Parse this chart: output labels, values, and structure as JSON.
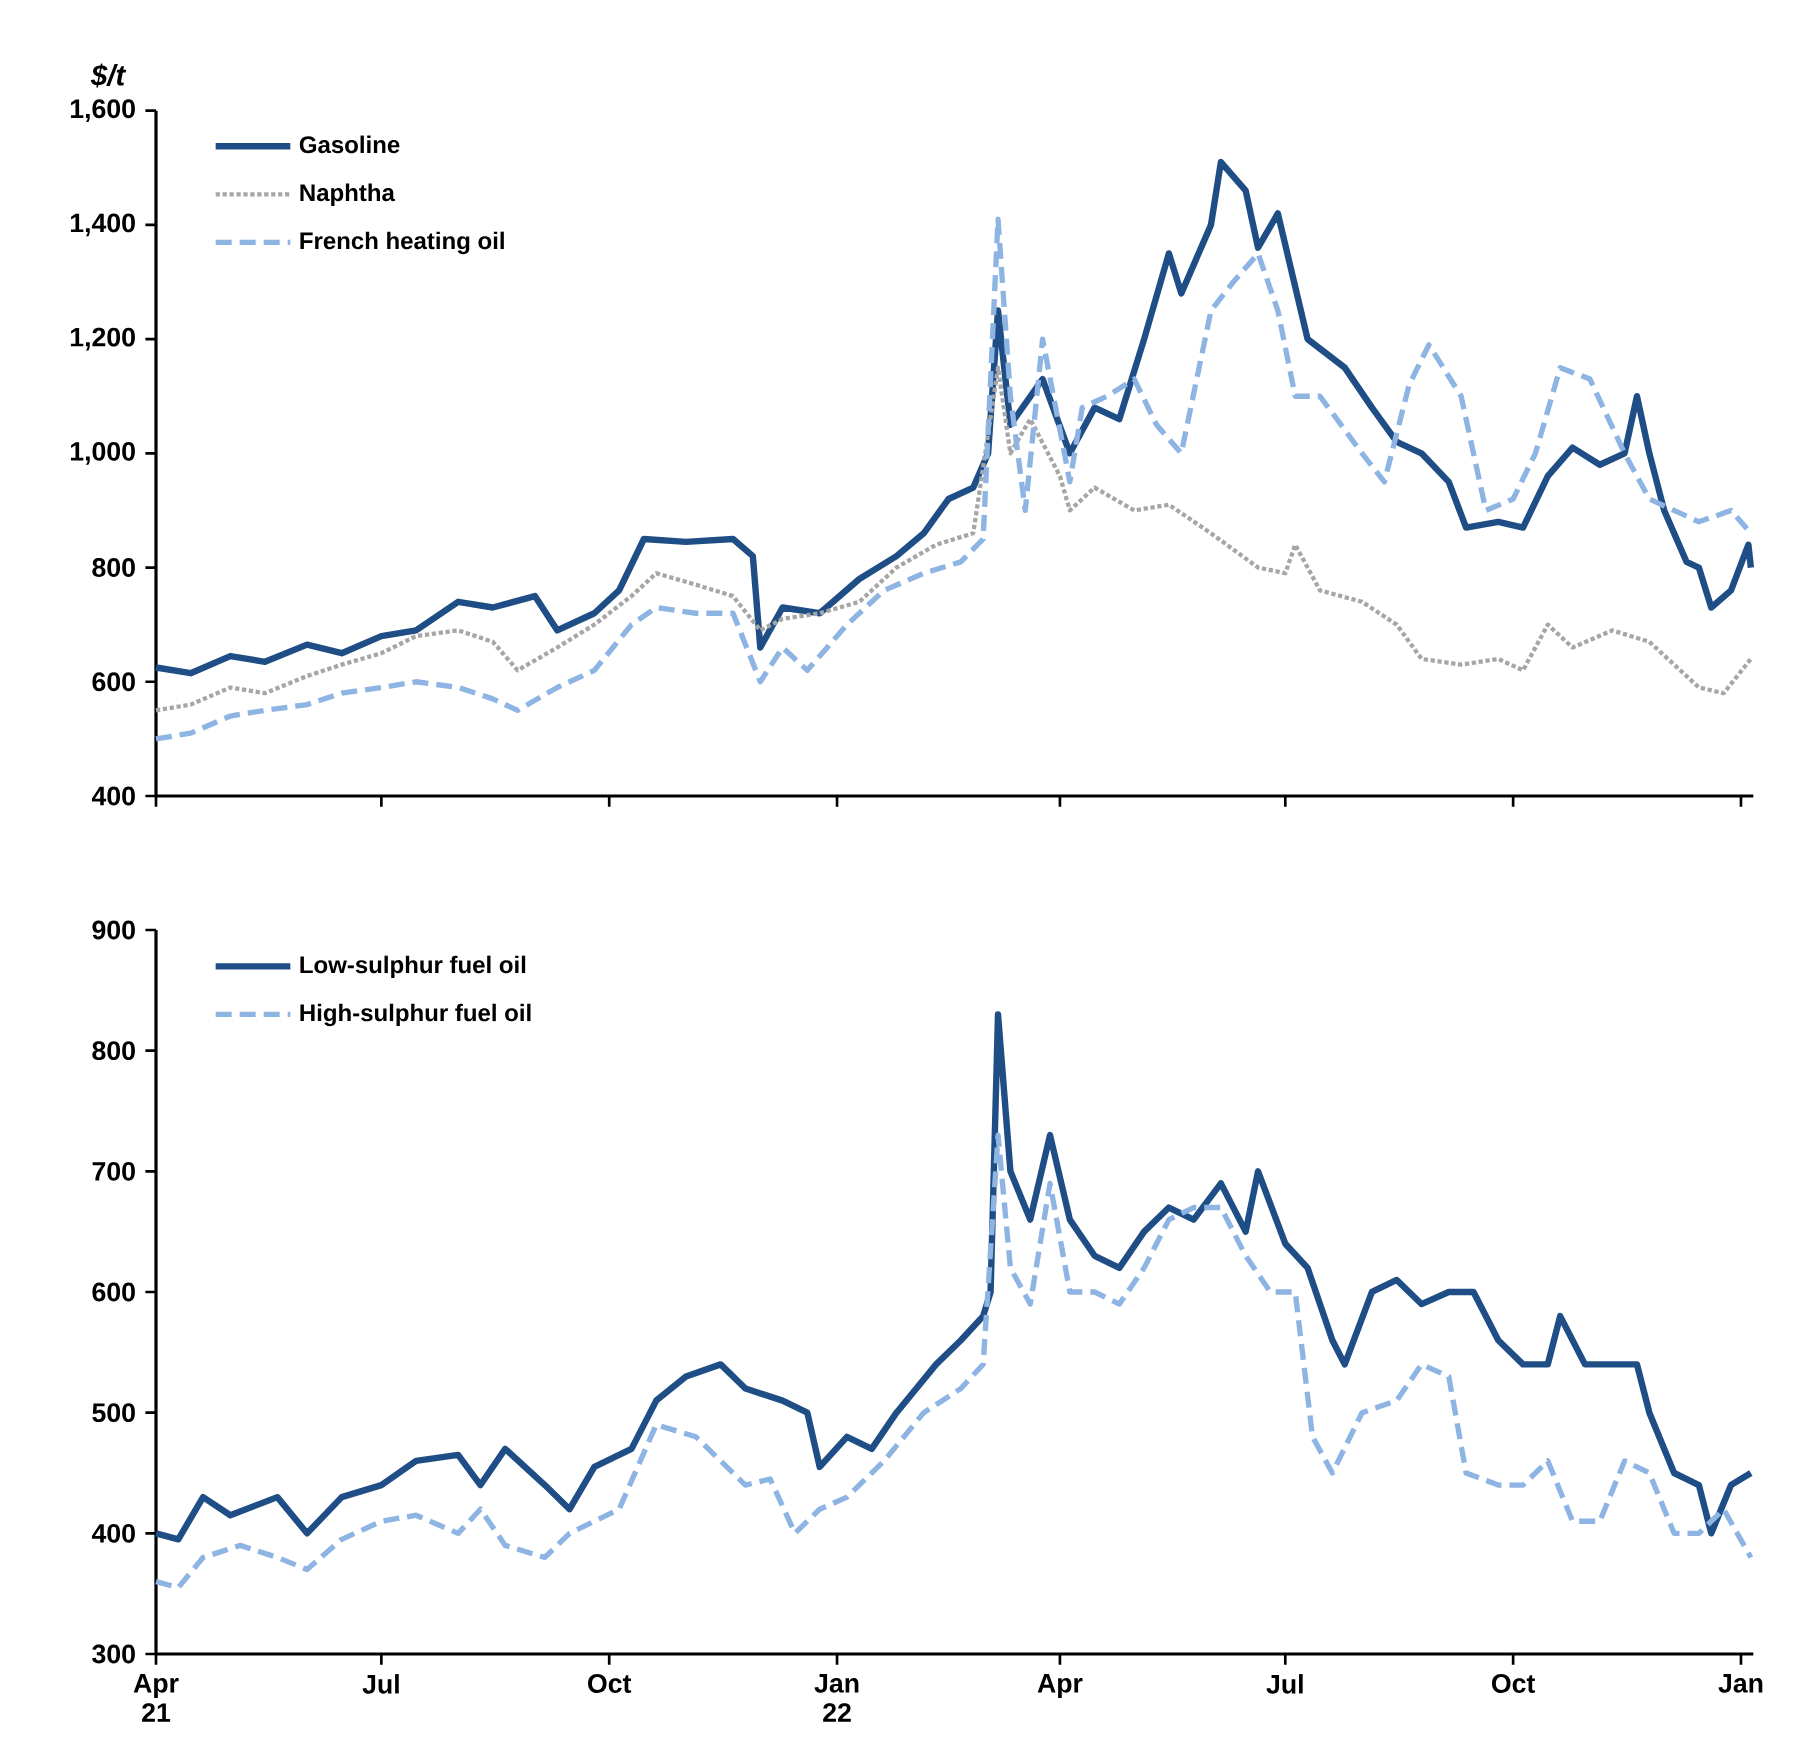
{
  "chart_data": [
    {
      "type": "line",
      "ylabel": "$/t",
      "xlim": [
        "2021-04-01",
        "2023-01-06"
      ],
      "ylim": [
        400,
        1600
      ],
      "yticks": [
        {
          "value": 400,
          "label": "400"
        },
        {
          "value": 600,
          "label": "600"
        },
        {
          "value": 800,
          "label": "800"
        },
        {
          "value": 1000,
          "label": "1,000"
        },
        {
          "value": 1200,
          "label": "1,200"
        },
        {
          "value": 1400,
          "label": "1,400"
        },
        {
          "value": 1600,
          "label": "1,600"
        }
      ],
      "xticks": [
        {
          "value": "2021-04-01",
          "label": null
        },
        {
          "value": "2021-07-01",
          "label": null
        },
        {
          "value": "2021-10-01",
          "label": null
        },
        {
          "value": "2022-01-01",
          "label": null
        },
        {
          "value": "2022-04-01",
          "label": null
        },
        {
          "value": "2022-07-01",
          "label": null
        },
        {
          "value": "2022-10-01",
          "label": null
        },
        {
          "value": "2023-01-01",
          "label": null
        }
      ],
      "tick_labels": "y",
      "legend": "top left",
      "grid": false,
      "series": [
        {
          "name": "Gasoline",
          "color": "#1f4e86",
          "line_style": "solid",
          "x": [
            "2021-04-01",
            "2021-04-15",
            "2021-05-01",
            "2021-05-15",
            "2021-06-01",
            "2021-06-15",
            "2021-07-01",
            "2021-07-15",
            "2021-08-01",
            "2021-08-15",
            "2021-09-01",
            "2021-09-10",
            "2021-09-25",
            "2021-10-05",
            "2021-10-15",
            "2021-11-01",
            "2021-11-20",
            "2021-11-28",
            "2021-12-01",
            "2021-12-10",
            "2021-12-25",
            "2022-01-10",
            "2022-01-25",
            "2022-02-05",
            "2022-02-15",
            "2022-02-25",
            "2022-03-03",
            "2022-03-07",
            "2022-03-12",
            "2022-03-25",
            "2022-04-05",
            "2022-04-15",
            "2022-04-25",
            "2022-05-05",
            "2022-05-15",
            "2022-05-20",
            "2022-06-01",
            "2022-06-05",
            "2022-06-15",
            "2022-06-20",
            "2022-06-28",
            "2022-07-10",
            "2022-07-25",
            "2022-08-05",
            "2022-08-15",
            "2022-08-25",
            "2022-09-05",
            "2022-09-12",
            "2022-09-25",
            "2022-10-05",
            "2022-10-15",
            "2022-10-25",
            "2022-11-05",
            "2022-11-15",
            "2022-11-20",
            "2022-11-25",
            "2022-12-01",
            "2022-12-10",
            "2022-12-15",
            "2022-12-20",
            "2022-12-28",
            "2023-01-04",
            "2023-01-05"
          ],
          "values": [
            625,
            615,
            645,
            635,
            665,
            650,
            680,
            690,
            740,
            730,
            750,
            690,
            720,
            760,
            850,
            845,
            850,
            820,
            660,
            730,
            720,
            780,
            820,
            860,
            920,
            940,
            1000,
            1250,
            1050,
            1130,
            1000,
            1080,
            1060,
            1200,
            1350,
            1280,
            1400,
            1510,
            1460,
            1360,
            1420,
            1200,
            1150,
            1080,
            1020,
            1000,
            950,
            870,
            880,
            870,
            960,
            1010,
            980,
            1000,
            1100,
            1000,
            900,
            810,
            800,
            730,
            760,
            840,
            800
          ]
        },
        {
          "name": "Naphtha",
          "color": "#a6a6a6",
          "line_style": "dotted",
          "x": [
            "2021-04-01",
            "2021-04-15",
            "2021-05-01",
            "2021-05-15",
            "2021-06-01",
            "2021-06-15",
            "2021-07-01",
            "2021-07-15",
            "2021-08-01",
            "2021-08-15",
            "2021-08-25",
            "2021-09-10",
            "2021-09-25",
            "2021-10-10",
            "2021-10-20",
            "2021-11-05",
            "2021-11-20",
            "2021-12-01",
            "2021-12-10",
            "2021-12-25",
            "2022-01-10",
            "2022-01-25",
            "2022-02-10",
            "2022-02-25",
            "2022-03-07",
            "2022-03-12",
            "2022-03-20",
            "2022-04-01",
            "2022-04-05",
            "2022-04-15",
            "2022-05-01",
            "2022-05-15",
            "2022-06-01",
            "2022-06-20",
            "2022-07-01",
            "2022-07-05",
            "2022-07-15",
            "2022-08-01",
            "2022-08-15",
            "2022-08-25",
            "2022-09-10",
            "2022-09-25",
            "2022-10-05",
            "2022-10-15",
            "2022-10-25",
            "2022-11-10",
            "2022-11-25",
            "2022-12-05",
            "2022-12-15",
            "2022-12-25",
            "2023-01-05"
          ],
          "values": [
            550,
            560,
            590,
            580,
            610,
            630,
            650,
            680,
            690,
            670,
            620,
            660,
            700,
            750,
            790,
            770,
            750,
            690,
            710,
            720,
            740,
            800,
            840,
            860,
            1150,
            1000,
            1060,
            960,
            900,
            940,
            900,
            910,
            860,
            800,
            790,
            840,
            760,
            740,
            700,
            640,
            630,
            640,
            620,
            700,
            660,
            690,
            670,
            630,
            590,
            580,
            640
          ]
        },
        {
          "name": "French heating oil",
          "color": "#8db4e2",
          "line_style": "dashed",
          "x": [
            "2021-04-01",
            "2021-04-15",
            "2021-05-01",
            "2021-05-15",
            "2021-06-01",
            "2021-06-15",
            "2021-07-01",
            "2021-07-15",
            "2021-08-01",
            "2021-08-15",
            "2021-08-25",
            "2021-09-10",
            "2021-09-25",
            "2021-10-10",
            "2021-10-20",
            "2021-11-05",
            "2021-11-20",
            "2021-12-01",
            "2021-12-10",
            "2021-12-20",
            "2022-01-05",
            "2022-01-20",
            "2022-02-05",
            "2022-02-20",
            "2022-03-01",
            "2022-03-07",
            "2022-03-12",
            "2022-03-18",
            "2022-03-25",
            "2022-04-05",
            "2022-04-10",
            "2022-04-20",
            "2022-05-01",
            "2022-05-10",
            "2022-05-20",
            "2022-06-01",
            "2022-06-10",
            "2022-06-20",
            "2022-06-28",
            "2022-07-05",
            "2022-07-15",
            "2022-08-01",
            "2022-08-10",
            "2022-08-20",
            "2022-08-28",
            "2022-09-10",
            "2022-09-20",
            "2022-10-01",
            "2022-10-10",
            "2022-10-20",
            "2022-11-01",
            "2022-11-15",
            "2022-11-25",
            "2022-12-05",
            "2022-12-15",
            "2022-12-28",
            "2023-01-05"
          ],
          "values": [
            500,
            510,
            540,
            550,
            560,
            580,
            590,
            600,
            590,
            570,
            550,
            590,
            620,
            700,
            730,
            720,
            720,
            600,
            660,
            620,
            700,
            760,
            790,
            810,
            850,
            1410,
            1100,
            900,
            1200,
            950,
            1080,
            1100,
            1130,
            1050,
            1000,
            1250,
            1300,
            1350,
            1250,
            1100,
            1100,
            1000,
            950,
            1120,
            1190,
            1100,
            900,
            920,
            1000,
            1150,
            1130,
            1000,
            920,
            900,
            880,
            900,
            860
          ]
        }
      ]
    },
    {
      "type": "line",
      "xlim": [
        "2021-04-01",
        "2023-01-06"
      ],
      "ylim": [
        300,
        900
      ],
      "yticks": [
        300,
        400,
        500,
        600,
        700,
        800,
        900
      ],
      "xticks": [
        {
          "value": "2021-04-01",
          "label": "Apr 21"
        },
        {
          "value": "2021-07-01",
          "label": "Jul"
        },
        {
          "value": "2021-10-01",
          "label": "Oct"
        },
        {
          "value": "2022-01-01",
          "label": "Jan 22"
        },
        {
          "value": "2022-04-01",
          "label": "Apr"
        },
        {
          "value": "2022-07-01",
          "label": "Jul"
        },
        {
          "value": "2022-10-01",
          "label": "Oct"
        },
        {
          "value": "2023-01-01",
          "label": "Jan"
        }
      ],
      "legend": "top left",
      "grid": false,
      "series": [
        {
          "name": "Low-sulphur fuel oil",
          "color": "#1f4e86",
          "line_style": "solid",
          "x": [
            "2021-04-01",
            "2021-04-10",
            "2021-04-20",
            "2021-05-01",
            "2021-05-20",
            "2021-06-01",
            "2021-06-15",
            "2021-07-01",
            "2021-07-15",
            "2021-08-01",
            "2021-08-10",
            "2021-08-20",
            "2021-09-05",
            "2021-09-15",
            "2021-09-25",
            "2021-10-10",
            "2021-10-20",
            "2021-11-01",
            "2021-11-15",
            "2021-11-25",
            "2021-12-10",
            "2021-12-20",
            "2021-12-25",
            "2022-01-05",
            "2022-01-15",
            "2022-01-25",
            "2022-02-10",
            "2022-02-20",
            "2022-03-01",
            "2022-03-04",
            "2022-03-07",
            "2022-03-12",
            "2022-03-20",
            "2022-03-28",
            "2022-04-05",
            "2022-04-15",
            "2022-04-25",
            "2022-05-05",
            "2022-05-15",
            "2022-05-25",
            "2022-06-05",
            "2022-06-15",
            "2022-06-20",
            "2022-07-01",
            "2022-07-10",
            "2022-07-20",
            "2022-07-25",
            "2022-08-05",
            "2022-08-15",
            "2022-08-25",
            "2022-09-05",
            "2022-09-15",
            "2022-09-25",
            "2022-10-05",
            "2022-10-15",
            "2022-10-20",
            "2022-10-30",
            "2022-11-10",
            "2022-11-20",
            "2022-11-25",
            "2022-12-05",
            "2022-12-15",
            "2022-12-20",
            "2022-12-28",
            "2023-01-05"
          ],
          "values": [
            400,
            395,
            430,
            415,
            430,
            400,
            430,
            440,
            460,
            465,
            440,
            470,
            440,
            420,
            455,
            470,
            510,
            530,
            540,
            520,
            510,
            500,
            455,
            480,
            470,
            500,
            540,
            560,
            580,
            600,
            830,
            700,
            660,
            730,
            660,
            630,
            620,
            650,
            670,
            660,
            690,
            650,
            700,
            640,
            620,
            560,
            540,
            600,
            610,
            590,
            600,
            600,
            560,
            540,
            540,
            580,
            540,
            540,
            540,
            500,
            450,
            440,
            400,
            440,
            450
          ]
        },
        {
          "name": "High-sulphur fuel oil",
          "color": "#8db4e2",
          "line_style": "dashed",
          "x": [
            "2021-04-01",
            "2021-04-10",
            "2021-04-20",
            "2021-05-05",
            "2021-05-20",
            "2021-06-01",
            "2021-06-15",
            "2021-07-01",
            "2021-07-15",
            "2021-08-01",
            "2021-08-10",
            "2021-08-20",
            "2021-09-05",
            "2021-09-15",
            "2021-09-25",
            "2021-10-05",
            "2021-10-20",
            "2021-11-05",
            "2021-11-15",
            "2021-11-25",
            "2021-12-05",
            "2021-12-15",
            "2021-12-25",
            "2022-01-05",
            "2022-01-20",
            "2022-02-05",
            "2022-02-20",
            "2022-03-01",
            "2022-03-07",
            "2022-03-12",
            "2022-03-20",
            "2022-03-28",
            "2022-04-05",
            "2022-04-15",
            "2022-04-25",
            "2022-05-05",
            "2022-05-15",
            "2022-05-25",
            "2022-06-05",
            "2022-06-15",
            "2022-06-25",
            "2022-07-05",
            "2022-07-12",
            "2022-07-20",
            "2022-08-01",
            "2022-08-15",
            "2022-08-25",
            "2022-09-05",
            "2022-09-12",
            "2022-09-25",
            "2022-10-05",
            "2022-10-15",
            "2022-10-25",
            "2022-11-05",
            "2022-11-15",
            "2022-11-25",
            "2022-12-05",
            "2022-12-15",
            "2022-12-25",
            "2023-01-05"
          ],
          "values": [
            360,
            355,
            380,
            390,
            380,
            370,
            395,
            410,
            415,
            400,
            420,
            390,
            380,
            400,
            410,
            420,
            490,
            480,
            460,
            440,
            445,
            400,
            420,
            430,
            460,
            500,
            520,
            540,
            730,
            620,
            590,
            690,
            600,
            600,
            590,
            620,
            660,
            670,
            670,
            630,
            600,
            600,
            480,
            450,
            500,
            510,
            540,
            530,
            450,
            440,
            440,
            460,
            410,
            410,
            460,
            450,
            400,
            400,
            420,
            380
          ]
        }
      ]
    }
  ]
}
